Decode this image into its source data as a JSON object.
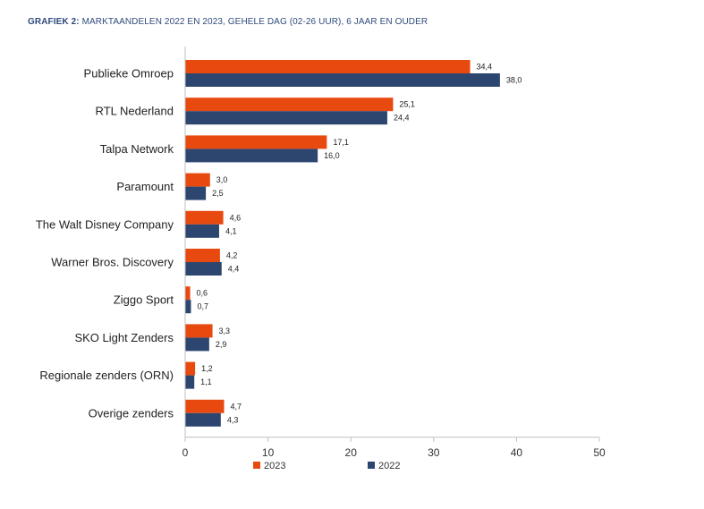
{
  "header": {
    "prefix": "GRAFIEK 2:",
    "text": "MARKTAANDELEN 2022 EN 2023, GEHELE DAG (02-26 UUR), 6 JAAR EN OUDER"
  },
  "colors": {
    "2023": "#e8490f",
    "2022": "#2d4670"
  },
  "chart_data": {
    "type": "bar",
    "orientation": "horizontal",
    "categories": [
      "Publieke Omroep",
      "RTL Nederland",
      "Talpa Network",
      "Paramount",
      "The Walt Disney Company",
      "Warner Bros. Discovery",
      "Ziggo Sport",
      "SKO Light Zenders",
      "Regionale zenders (ORN)",
      "Overige zenders"
    ],
    "series": [
      {
        "name": "2023",
        "values": [
          34.4,
          25.1,
          17.1,
          3.0,
          4.6,
          4.2,
          0.6,
          3.3,
          1.2,
          4.7
        ],
        "labels": [
          "34,4",
          "25,1",
          "17,1",
          "3,0",
          "4,6",
          "4,2",
          "0,6",
          "3,3",
          "1,2",
          "4,7"
        ]
      },
      {
        "name": "2022",
        "values": [
          38.0,
          24.4,
          16.0,
          2.5,
          4.1,
          4.4,
          0.7,
          2.9,
          1.1,
          4.3
        ],
        "labels": [
          "38,0",
          "24,4",
          "16,0",
          "2,5",
          "4,1",
          "4,4",
          "0,7",
          "2,9",
          "1,1",
          "4,3"
        ]
      }
    ],
    "xlim": [
      0,
      50
    ],
    "xticks": [
      "0",
      "10",
      "20",
      "30",
      "40",
      "50"
    ],
    "legend_position": "bottom",
    "grid": false
  }
}
